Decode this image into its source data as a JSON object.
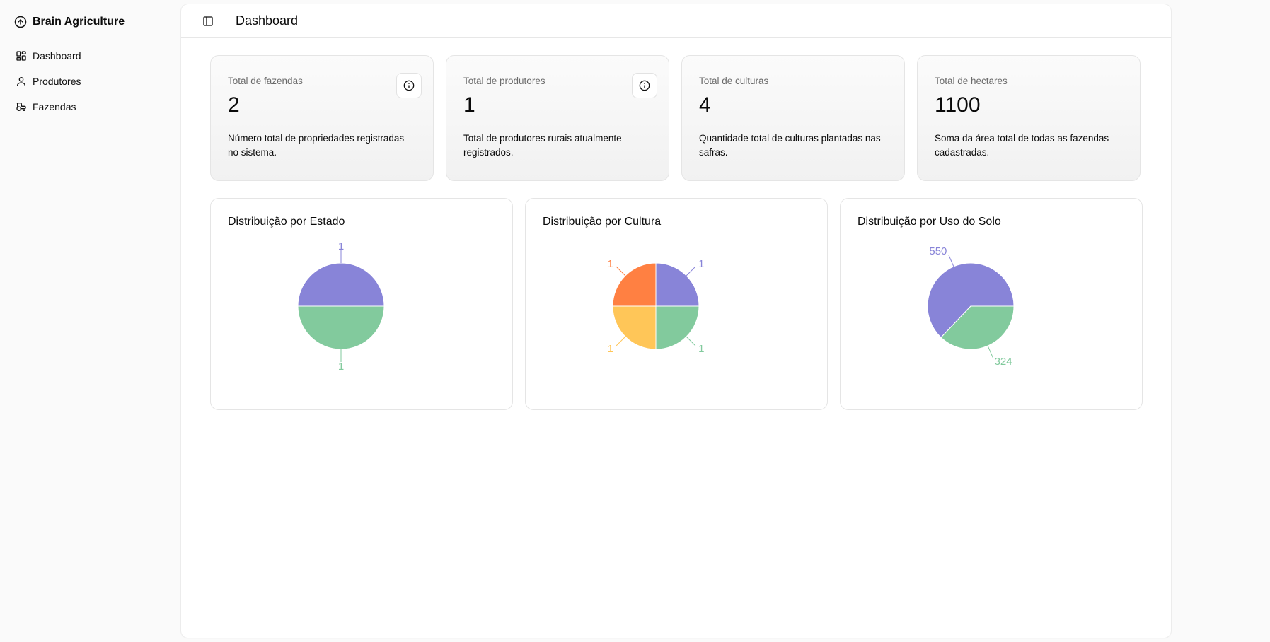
{
  "app": {
    "name": "Brain Agriculture"
  },
  "sidebar": {
    "items": [
      {
        "label": "Dashboard",
        "icon": "layout-dashboard-icon"
      },
      {
        "label": "Produtores",
        "icon": "user-icon"
      },
      {
        "label": "Fazendas",
        "icon": "tractor-icon"
      }
    ]
  },
  "header": {
    "title": "Dashboard"
  },
  "stats": [
    {
      "label": "Total de fazendas",
      "value": "2",
      "description": "Número total de propriedades registradas no sistema.",
      "has_info": true
    },
    {
      "label": "Total de produtores",
      "value": "1",
      "description": "Total de produtores rurais atualmente registrados.",
      "has_info": true
    },
    {
      "label": "Total de culturas",
      "value": "4",
      "description": "Quantidade total de culturas plantadas nas safras.",
      "has_info": false
    },
    {
      "label": "Total de hectares",
      "value": "1100",
      "description": "Soma da área total de todas as fazendas cadastradas.",
      "has_info": false
    }
  ],
  "colors": {
    "purple": "#8884d8",
    "green": "#82ca9d",
    "yellow": "#ffc658",
    "orange": "#ff8042"
  },
  "charts": [
    {
      "title": "Distribuição por Estado"
    },
    {
      "title": "Distribuição por Cultura"
    },
    {
      "title": "Distribuição por Uso do Solo"
    }
  ],
  "chart_data": [
    {
      "type": "pie",
      "title": "Distribuição por Estado",
      "slices": [
        {
          "value": 1,
          "color": "#8884d8"
        },
        {
          "value": 1,
          "color": "#82ca9d"
        }
      ]
    },
    {
      "type": "pie",
      "title": "Distribuição por Cultura",
      "slices": [
        {
          "value": 1,
          "color": "#8884d8"
        },
        {
          "value": 1,
          "color": "#ff8042"
        },
        {
          "value": 1,
          "color": "#ffc658"
        },
        {
          "value": 1,
          "color": "#82ca9d"
        }
      ]
    },
    {
      "type": "pie",
      "title": "Distribuição por Uso do Solo",
      "slices": [
        {
          "value": 550,
          "color": "#8884d8"
        },
        {
          "value": 324,
          "color": "#82ca9d"
        }
      ]
    }
  ]
}
